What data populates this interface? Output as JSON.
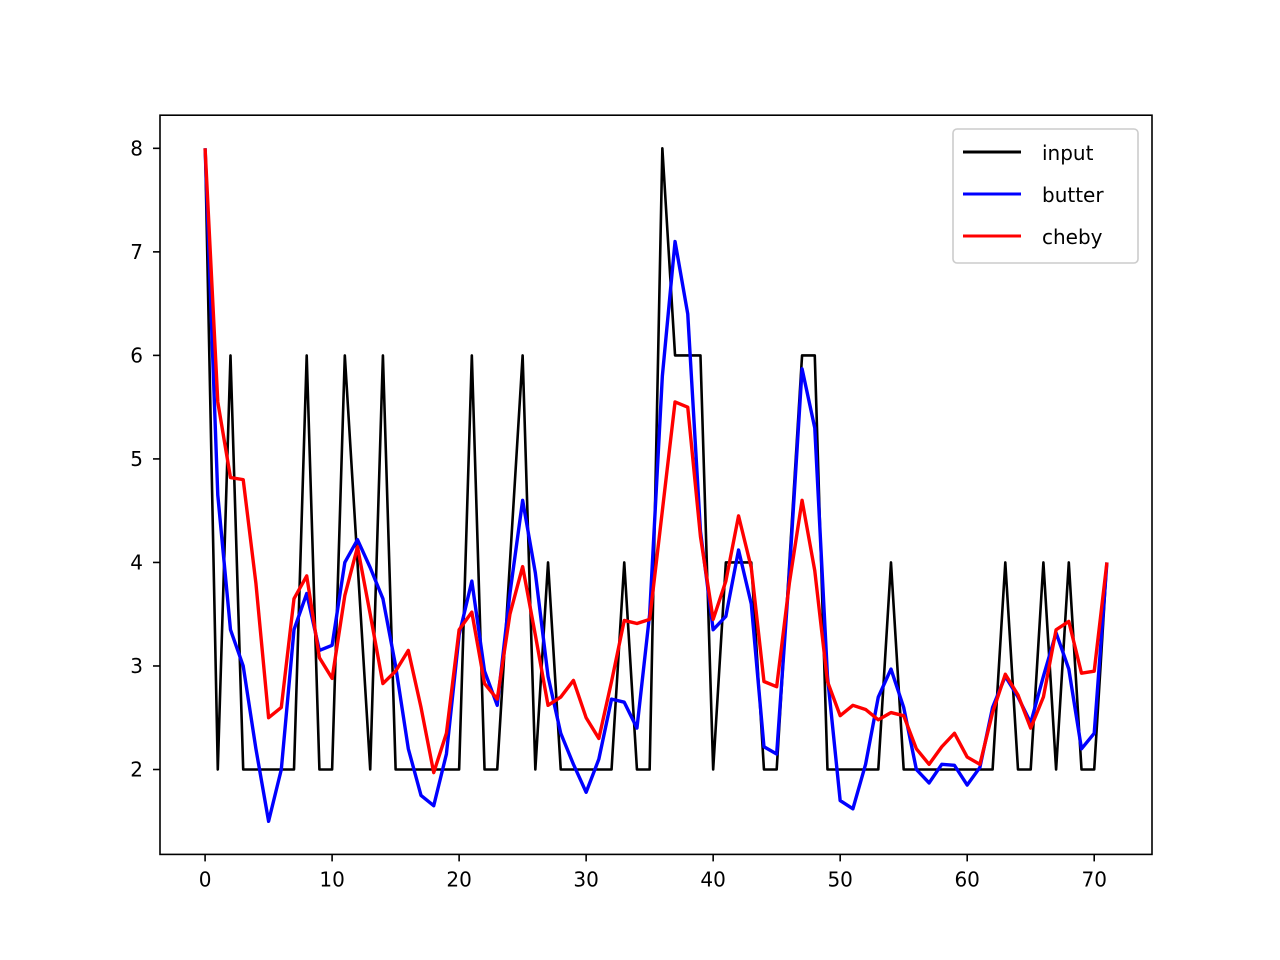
{
  "chart_data": {
    "type": "line",
    "title": "",
    "xlabel": "",
    "ylabel": "",
    "xlim": [
      -3.55,
      74.55
    ],
    "ylim": [
      1.18,
      8.32
    ],
    "xticks": [
      0,
      10,
      20,
      30,
      40,
      50,
      60,
      70
    ],
    "yticks": [
      2,
      3,
      4,
      5,
      6,
      7,
      8
    ],
    "xtick_labels": [
      "0",
      "10",
      "20",
      "30",
      "40",
      "50",
      "60",
      "70"
    ],
    "ytick_labels": [
      "2",
      "3",
      "4",
      "5",
      "6",
      "7",
      "8"
    ],
    "grid": false,
    "legend_position": "top-right",
    "series": [
      {
        "name": "input",
        "color": "#000000",
        "x": [
          0,
          1,
          2,
          3,
          4,
          5,
          6,
          7,
          8,
          9,
          10,
          11,
          12,
          13,
          14,
          15,
          16,
          17,
          18,
          19,
          20,
          21,
          22,
          23,
          24,
          25,
          26,
          27,
          28,
          29,
          30,
          31,
          32,
          33,
          34,
          35,
          36,
          37,
          38,
          39,
          40,
          41,
          42,
          43,
          44,
          45,
          46,
          47,
          48,
          49,
          50,
          51,
          52,
          53,
          54,
          55,
          56,
          57,
          58,
          59,
          60,
          61,
          62,
          63,
          64,
          65,
          66,
          67,
          68,
          69,
          70,
          71
        ],
        "values": [
          8,
          2,
          6,
          2,
          2,
          2,
          2,
          2,
          6,
          2,
          2,
          6,
          4,
          2,
          6,
          2,
          2,
          2,
          2,
          2,
          2,
          6,
          2,
          2,
          4,
          6,
          2,
          4,
          2,
          2,
          2,
          2,
          2,
          4,
          2,
          2,
          8,
          6,
          6,
          6,
          2,
          4,
          4,
          4,
          2,
          2,
          4,
          6,
          6,
          2,
          2,
          2,
          2,
          2,
          4,
          2,
          2,
          2,
          2,
          2,
          2,
          2,
          2,
          4,
          2,
          2,
          4,
          2,
          4,
          2,
          2,
          4
        ]
      },
      {
        "name": "butter",
        "color": "#0000ff",
        "x": [
          0,
          1,
          2,
          3,
          4,
          5,
          6,
          7,
          8,
          9,
          10,
          11,
          12,
          13,
          14,
          15,
          16,
          17,
          18,
          19,
          20,
          21,
          22,
          23,
          24,
          25,
          26,
          27,
          28,
          29,
          30,
          31,
          32,
          33,
          34,
          35,
          36,
          37,
          38,
          39,
          40,
          41,
          42,
          43,
          44,
          45,
          46,
          47,
          48,
          49,
          50,
          51,
          52,
          53,
          54,
          55,
          56,
          57,
          58,
          59,
          60,
          61,
          62,
          63,
          64,
          65,
          66,
          67,
          68,
          69,
          70,
          71
        ],
        "values": [
          8.0,
          4.65,
          3.35,
          3.0,
          2.2,
          1.5,
          2.0,
          3.35,
          3.7,
          3.15,
          3.2,
          4.0,
          4.22,
          3.95,
          3.65,
          3.0,
          2.2,
          1.75,
          1.65,
          2.15,
          3.3,
          3.82,
          2.95,
          2.62,
          3.7,
          4.6,
          3.9,
          2.9,
          2.35,
          2.05,
          1.78,
          2.1,
          2.68,
          2.65,
          2.4,
          3.5,
          5.8,
          7.1,
          6.4,
          4.3,
          3.35,
          3.48,
          4.12,
          3.6,
          2.22,
          2.15,
          3.9,
          5.87,
          5.3,
          2.9,
          1.7,
          1.62,
          2.05,
          2.7,
          2.97,
          2.6,
          2.0,
          1.87,
          2.05,
          2.04,
          1.85,
          2.02,
          2.6,
          2.9,
          2.7,
          2.45,
          2.9,
          3.32,
          2.97,
          2.2,
          2.35,
          4.0
        ]
      },
      {
        "name": "cheby",
        "color": "#ff0000",
        "x": [
          0,
          1,
          2,
          3,
          4,
          5,
          6,
          7,
          8,
          9,
          10,
          11,
          12,
          13,
          14,
          15,
          16,
          17,
          18,
          19,
          20,
          21,
          22,
          23,
          24,
          25,
          26,
          27,
          28,
          29,
          30,
          31,
          32,
          33,
          34,
          35,
          36,
          37,
          38,
          39,
          40,
          41,
          42,
          43,
          44,
          45,
          46,
          47,
          48,
          49,
          50,
          51,
          52,
          53,
          54,
          55,
          56,
          57,
          58,
          59,
          60,
          61,
          62,
          63,
          64,
          65,
          66,
          67,
          68,
          69,
          70,
          71
        ],
        "values": [
          8.0,
          5.55,
          4.82,
          4.8,
          3.8,
          2.5,
          2.6,
          3.65,
          3.87,
          3.08,
          2.88,
          3.68,
          4.15,
          3.5,
          2.83,
          2.95,
          3.15,
          2.6,
          1.97,
          2.35,
          3.35,
          3.52,
          2.83,
          2.68,
          3.5,
          3.96,
          3.3,
          2.62,
          2.7,
          2.86,
          2.5,
          2.3,
          2.85,
          3.44,
          3.41,
          3.45,
          4.5,
          5.55,
          5.5,
          4.25,
          3.45,
          3.82,
          4.45,
          3.95,
          2.85,
          2.8,
          3.8,
          4.6,
          3.92,
          2.85,
          2.52,
          2.62,
          2.58,
          2.48,
          2.55,
          2.52,
          2.2,
          2.05,
          2.22,
          2.35,
          2.12,
          2.05,
          2.55,
          2.92,
          2.72,
          2.4,
          2.7,
          3.35,
          3.43,
          2.93,
          2.95,
          4.0
        ]
      }
    ]
  }
}
